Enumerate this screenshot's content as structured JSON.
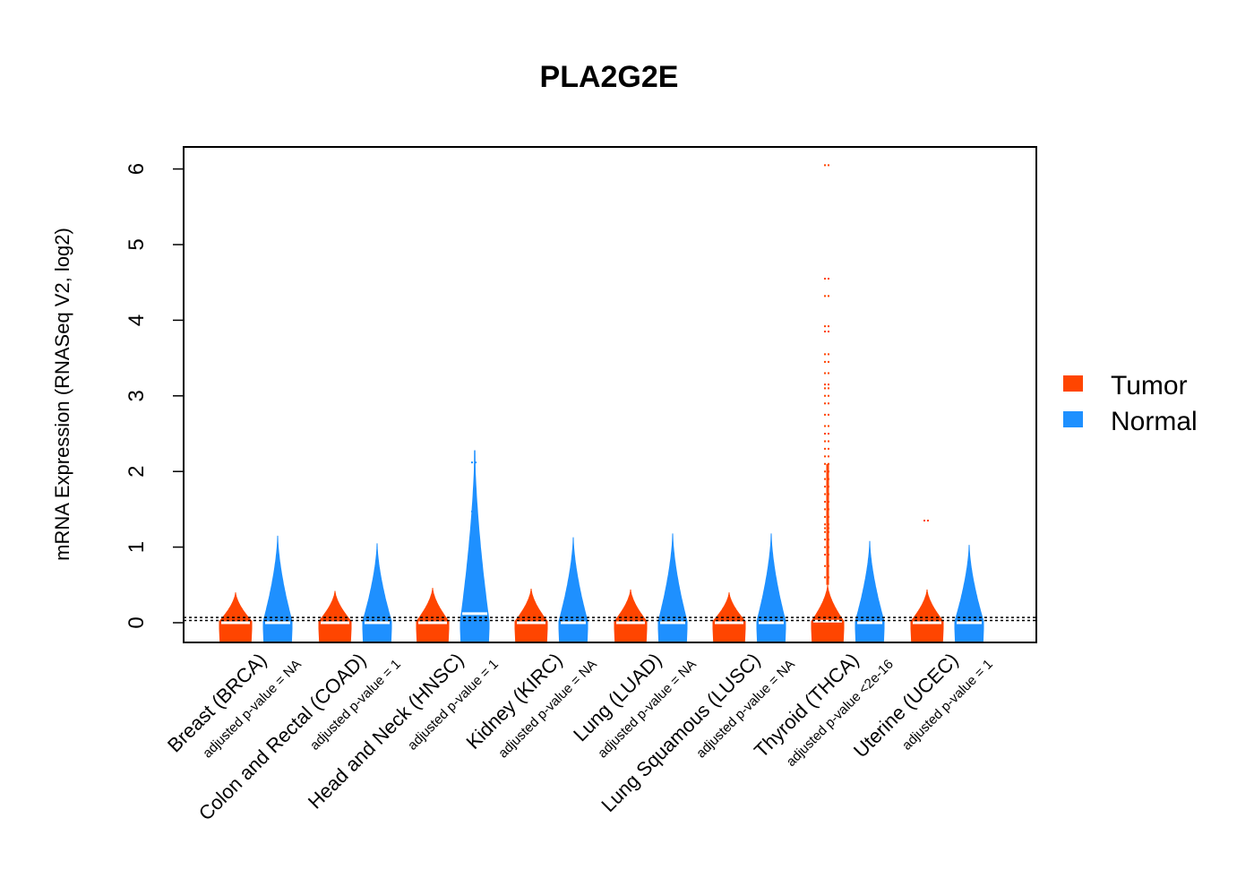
{
  "chart_data": {
    "type": "violin",
    "title": "PLA2G2E",
    "ylabel": "mRNA Expression (RNASeq V2, log2)",
    "ylim": [
      -0.25,
      6.3
    ],
    "yticks": [
      0,
      1,
      2,
      3,
      4,
      5,
      6
    ],
    "reference_lines": [
      0.03,
      0.07
    ],
    "legend": {
      "placement": "right",
      "items": [
        {
          "label": "Tumor",
          "color": "#FF4500"
        },
        {
          "label": "Normal",
          "color": "#1E90FF"
        }
      ]
    },
    "categories": [
      {
        "name": "Breast (BRCA)",
        "pvalue": "adjusted p-value = NA",
        "tumor": {
          "min": -0.25,
          "max": 0.4,
          "median": 0.0,
          "outliers": []
        },
        "normal": {
          "min": -0.25,
          "max": 1.15,
          "median": 0.0,
          "outliers": []
        }
      },
      {
        "name": "Colon and Rectal (COAD)",
        "pvalue": "adjusted p-value = 1",
        "tumor": {
          "min": -0.25,
          "max": 0.42,
          "median": 0.0,
          "outliers": []
        },
        "normal": {
          "min": -0.25,
          "max": 1.05,
          "median": 0.0,
          "outliers": []
        }
      },
      {
        "name": "Head and Neck (HNSC)",
        "pvalue": "adjusted p-value = 1",
        "tumor": {
          "min": -0.25,
          "max": 0.46,
          "median": 0.0,
          "outliers": [
            0.22
          ]
        },
        "normal": {
          "min": -0.25,
          "max": 2.28,
          "median": 0.12,
          "outliers": [
            0.3,
            0.46,
            1.47,
            2.12
          ]
        }
      },
      {
        "name": "Kidney (KIRC)",
        "pvalue": "adjusted p-value = NA",
        "tumor": {
          "min": -0.25,
          "max": 0.45,
          "median": 0.0,
          "outliers": []
        },
        "normal": {
          "min": -0.25,
          "max": 1.13,
          "median": 0.0,
          "outliers": []
        }
      },
      {
        "name": "Lung (LUAD)",
        "pvalue": "adjusted p-value = NA",
        "tumor": {
          "min": -0.25,
          "max": 0.44,
          "median": 0.0,
          "outliers": []
        },
        "normal": {
          "min": -0.25,
          "max": 1.18,
          "median": 0.0,
          "outliers": []
        }
      },
      {
        "name": "Lung Squamous (LUSC)",
        "pvalue": "adjusted p-value = NA",
        "tumor": {
          "min": -0.25,
          "max": 0.4,
          "median": 0.0,
          "outliers": []
        },
        "normal": {
          "min": -0.25,
          "max": 1.18,
          "median": 0.0,
          "outliers": []
        }
      },
      {
        "name": "Thyroid (THCA)",
        "pvalue": "adjusted p-value <2e-16",
        "tumor": {
          "min": -0.25,
          "max": 0.5,
          "median": 0.02,
          "outliers": [
            0.6,
            0.75,
            0.9,
            1.0,
            1.1,
            1.2,
            1.25,
            1.3,
            1.4,
            1.5,
            1.6,
            1.7,
            1.8,
            1.9,
            2.0,
            2.1,
            2.2,
            2.3,
            2.4,
            2.5,
            2.6,
            2.75,
            2.9,
            3.0,
            3.1,
            3.15,
            3.3,
            3.45,
            3.55,
            3.85,
            3.92,
            4.32,
            4.55,
            6.05
          ]
        },
        "normal": {
          "min": -0.25,
          "max": 1.08,
          "median": 0.0,
          "outliers": []
        }
      },
      {
        "name": "Uterine (UCEC)",
        "pvalue": "adjusted p-value = 1",
        "tumor": {
          "min": -0.25,
          "max": 0.44,
          "median": 0.0,
          "outliers": [
            1.35
          ]
        },
        "normal": {
          "min": -0.25,
          "max": 1.03,
          "median": 0.0,
          "outliers": []
        }
      }
    ]
  }
}
